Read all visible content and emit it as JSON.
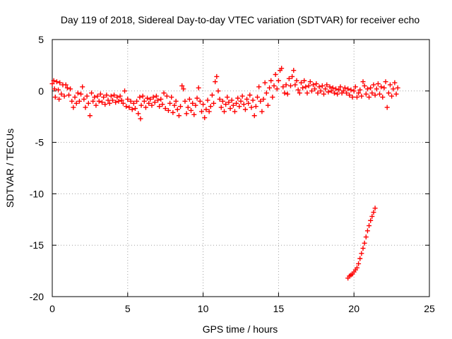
{
  "chart_data": {
    "type": "scatter",
    "title": "Day 119 of 2018, Sidereal Day-to-day VTEC variation (SDTVAR) for receiver echo",
    "xlabel": "GPS time / hours",
    "ylabel": "SDTVAR / TECUs",
    "xlim": [
      0,
      25
    ],
    "ylim": [
      -20,
      5
    ],
    "xticks": [
      0,
      5,
      10,
      15,
      20,
      25
    ],
    "yticks": [
      5,
      0,
      -5,
      -10,
      -15,
      -20
    ],
    "grid": true,
    "marker": "plus",
    "color": "#ff0000",
    "series": [
      {
        "name": "main",
        "points": [
          [
            0.0,
            0.7
          ],
          [
            0.1,
            1.0
          ],
          [
            0.15,
            0.2
          ],
          [
            0.2,
            -0.6
          ],
          [
            0.3,
            0.9
          ],
          [
            0.4,
            0.1
          ],
          [
            0.45,
            -0.8
          ],
          [
            0.5,
            0.8
          ],
          [
            0.6,
            -0.3
          ],
          [
            0.7,
            0.6
          ],
          [
            0.8,
            -0.5
          ],
          [
            0.9,
            0.6
          ],
          [
            1.0,
            0.3
          ],
          [
            1.1,
            -0.4
          ],
          [
            1.2,
            0.2
          ],
          [
            1.3,
            -1.0
          ],
          [
            1.4,
            -1.6
          ],
          [
            1.5,
            -0.6
          ],
          [
            1.6,
            -1.2
          ],
          [
            1.7,
            -0.2
          ],
          [
            1.8,
            -1.0
          ],
          [
            1.9,
            -0.3
          ],
          [
            2.0,
            0.4
          ],
          [
            2.1,
            -0.8
          ],
          [
            2.2,
            -1.6
          ],
          [
            2.3,
            -0.5
          ],
          [
            2.4,
            -1.2
          ],
          [
            2.5,
            -2.4
          ],
          [
            2.6,
            -0.2
          ],
          [
            2.7,
            -1.0
          ],
          [
            2.8,
            -0.6
          ],
          [
            2.9,
            -1.4
          ],
          [
            3.0,
            -0.5
          ],
          [
            3.1,
            -1.0
          ],
          [
            3.2,
            -0.3
          ],
          [
            3.3,
            -1.1
          ],
          [
            3.4,
            -0.6
          ],
          [
            3.5,
            -1.3
          ],
          [
            3.6,
            -0.4
          ],
          [
            3.7,
            -0.9
          ],
          [
            3.8,
            -1.2
          ],
          [
            3.9,
            -0.5
          ],
          [
            4.0,
            -0.9
          ],
          [
            4.1,
            -0.4
          ],
          [
            4.2,
            -1.1
          ],
          [
            4.3,
            -0.6
          ],
          [
            4.4,
            -1.0
          ],
          [
            4.5,
            -0.5
          ],
          [
            4.6,
            -0.9
          ],
          [
            4.7,
            -1.2
          ],
          [
            4.8,
            0.0
          ],
          [
            4.9,
            -1.5
          ],
          [
            5.0,
            -0.8
          ],
          [
            5.1,
            -1.6
          ],
          [
            5.2,
            -1.0
          ],
          [
            5.3,
            -1.8
          ],
          [
            5.4,
            -1.2
          ],
          [
            5.5,
            -1.7
          ],
          [
            5.6,
            -1.0
          ],
          [
            5.7,
            -2.2
          ],
          [
            5.8,
            -0.6
          ],
          [
            5.85,
            -2.7
          ],
          [
            5.9,
            -1.4
          ],
          [
            6.0,
            -0.5
          ],
          [
            6.1,
            -1.0
          ],
          [
            6.2,
            -1.6
          ],
          [
            6.3,
            -0.7
          ],
          [
            6.4,
            -1.2
          ],
          [
            6.5,
            -0.8
          ],
          [
            6.6,
            -1.4
          ],
          [
            6.7,
            -0.6
          ],
          [
            6.8,
            -1.1
          ],
          [
            6.9,
            -0.5
          ],
          [
            7.0,
            -0.9
          ],
          [
            7.1,
            -1.5
          ],
          [
            7.2,
            -0.8
          ],
          [
            7.3,
            -1.3
          ],
          [
            7.4,
            -0.2
          ],
          [
            7.5,
            -1.7
          ],
          [
            7.6,
            -0.5
          ],
          [
            7.7,
            -1.9
          ],
          [
            7.8,
            -1.2
          ],
          [
            7.9,
            -0.6
          ],
          [
            8.0,
            -2.1
          ],
          [
            8.1,
            -1.4
          ],
          [
            8.2,
            -1.0
          ],
          [
            8.3,
            -1.8
          ],
          [
            8.4,
            -2.4
          ],
          [
            8.5,
            -1.5
          ],
          [
            8.6,
            0.5
          ],
          [
            8.7,
            0.2
          ],
          [
            8.8,
            -1.0
          ],
          [
            8.9,
            -2.2
          ],
          [
            9.0,
            -1.6
          ],
          [
            9.1,
            -0.8
          ],
          [
            9.2,
            -1.9
          ],
          [
            9.3,
            -1.2
          ],
          [
            9.4,
            -2.3
          ],
          [
            9.5,
            -1.4
          ],
          [
            9.6,
            -0.7
          ],
          [
            9.7,
            0.3
          ],
          [
            9.8,
            -1.0
          ],
          [
            9.9,
            -2.0
          ],
          [
            10.0,
            -1.3
          ],
          [
            10.1,
            -2.6
          ],
          [
            10.2,
            -1.8
          ],
          [
            10.3,
            -0.9
          ],
          [
            10.4,
            -2.0
          ],
          [
            10.5,
            -1.5
          ],
          [
            10.6,
            -0.4
          ],
          [
            10.7,
            -1.2
          ],
          [
            10.8,
            0.9
          ],
          [
            10.9,
            1.4
          ],
          [
            11.0,
            0.0
          ],
          [
            11.1,
            -0.8
          ],
          [
            11.2,
            -1.6
          ],
          [
            11.3,
            -1.0
          ],
          [
            11.4,
            -2.0
          ],
          [
            11.5,
            -1.3
          ],
          [
            11.6,
            -0.6
          ],
          [
            11.7,
            -1.1
          ],
          [
            11.8,
            -1.7
          ],
          [
            11.9,
            -0.9
          ],
          [
            12.0,
            -1.4
          ],
          [
            12.1,
            -2.0
          ],
          [
            12.2,
            -1.2
          ],
          [
            12.3,
            -0.7
          ],
          [
            12.4,
            -1.5
          ],
          [
            12.5,
            -1.0
          ],
          [
            12.6,
            -0.5
          ],
          [
            12.7,
            -1.3
          ],
          [
            12.8,
            -1.8
          ],
          [
            12.9,
            -0.8
          ],
          [
            13.0,
            -1.2
          ],
          [
            13.1,
            -0.4
          ],
          [
            13.2,
            -1.6
          ],
          [
            13.3,
            -0.9
          ],
          [
            13.4,
            -2.4
          ],
          [
            13.5,
            -1.5
          ],
          [
            13.6,
            -0.6
          ],
          [
            13.7,
            0.4
          ],
          [
            13.8,
            -1.0
          ],
          [
            13.9,
            -2.0
          ],
          [
            14.0,
            -0.8
          ],
          [
            14.1,
            0.8
          ],
          [
            14.2,
            -0.2
          ],
          [
            14.3,
            -1.4
          ],
          [
            14.4,
            0.3
          ],
          [
            14.5,
            1.0
          ],
          [
            14.6,
            -0.6
          ],
          [
            14.7,
            0.5
          ],
          [
            14.8,
            1.6
          ],
          [
            14.9,
            0.2
          ],
          [
            15.0,
            1.0
          ],
          [
            15.1,
            2.0
          ],
          [
            15.2,
            2.2
          ],
          [
            15.3,
            0.4
          ],
          [
            15.4,
            -0.2
          ],
          [
            15.5,
            0.6
          ],
          [
            15.6,
            -0.3
          ],
          [
            15.7,
            1.2
          ],
          [
            15.8,
            0.5
          ],
          [
            15.9,
            1.4
          ],
          [
            16.0,
            2.0
          ],
          [
            16.1,
            0.6
          ],
          [
            16.2,
            1.0
          ],
          [
            16.3,
            0.1
          ],
          [
            16.4,
            -0.2
          ],
          [
            16.5,
            0.8
          ],
          [
            16.6,
            0.3
          ],
          [
            16.7,
            1.0
          ],
          [
            16.8,
            0.4
          ],
          [
            16.9,
            -0.2
          ],
          [
            17.0,
            0.5
          ],
          [
            17.1,
            0.9
          ],
          [
            17.2,
            0.0
          ],
          [
            17.3,
            0.6
          ],
          [
            17.4,
            0.2
          ],
          [
            17.5,
            0.7
          ],
          [
            17.6,
            -0.2
          ],
          [
            17.7,
            0.4
          ],
          [
            17.8,
            0.0
          ],
          [
            17.9,
            0.5
          ],
          [
            18.0,
            -0.3
          ],
          [
            18.1,
            0.2
          ],
          [
            18.2,
            0.6
          ],
          [
            18.3,
            -0.1
          ],
          [
            18.4,
            0.4
          ],
          [
            18.5,
            0.0
          ],
          [
            18.6,
            0.3
          ],
          [
            18.7,
            -0.2
          ],
          [
            18.8,
            0.2
          ],
          [
            18.9,
            -0.3
          ],
          [
            19.0,
            0.1
          ],
          [
            19.1,
            0.4
          ],
          [
            19.2,
            -0.2
          ],
          [
            19.3,
            0.0
          ],
          [
            19.4,
            0.3
          ],
          [
            19.5,
            -0.2
          ],
          [
            19.6,
            0.2
          ],
          [
            19.7,
            -0.4
          ],
          [
            19.8,
            0.1
          ],
          [
            19.9,
            -0.6
          ],
          [
            20.0,
            0.0
          ],
          [
            20.1,
            0.4
          ],
          [
            20.2,
            -0.6
          ],
          [
            20.3,
            -0.2
          ],
          [
            20.4,
            0.1
          ],
          [
            20.5,
            -0.5
          ],
          [
            20.6,
            0.9
          ],
          [
            20.7,
            0.5
          ],
          [
            20.8,
            -0.3
          ],
          [
            20.9,
            0.2
          ],
          [
            21.0,
            -0.6
          ],
          [
            21.1,
            0.3
          ],
          [
            21.2,
            -0.2
          ],
          [
            21.3,
            0.6
          ],
          [
            21.4,
            -0.4
          ],
          [
            21.5,
            0.2
          ],
          [
            21.6,
            0.7
          ],
          [
            21.7,
            -0.3
          ],
          [
            21.8,
            0.4
          ],
          [
            21.9,
            -0.6
          ],
          [
            22.0,
            0.3
          ],
          [
            22.1,
            0.9
          ],
          [
            22.2,
            -1.6
          ],
          [
            22.3,
            -0.2
          ],
          [
            22.4,
            0.6
          ],
          [
            22.5,
            -0.5
          ],
          [
            22.6,
            0.2
          ],
          [
            22.7,
            0.8
          ],
          [
            22.8,
            -0.3
          ],
          [
            22.9,
            0.3
          ]
        ]
      },
      {
        "name": "descending-track",
        "points": [
          [
            19.6,
            -18.2
          ],
          [
            19.7,
            -18.0
          ],
          [
            19.8,
            -17.9
          ],
          [
            19.9,
            -17.8
          ],
          [
            20.0,
            -17.6
          ],
          [
            20.1,
            -17.4
          ],
          [
            20.2,
            -17.2
          ],
          [
            20.3,
            -16.8
          ],
          [
            20.4,
            -16.3
          ],
          [
            20.5,
            -15.8
          ],
          [
            20.6,
            -15.3
          ],
          [
            20.7,
            -14.8
          ],
          [
            20.8,
            -14.2
          ],
          [
            20.9,
            -13.6
          ],
          [
            21.0,
            -13.1
          ],
          [
            21.1,
            -12.6
          ],
          [
            21.2,
            -12.2
          ],
          [
            21.3,
            -11.8
          ],
          [
            21.4,
            -11.4
          ]
        ]
      }
    ]
  }
}
